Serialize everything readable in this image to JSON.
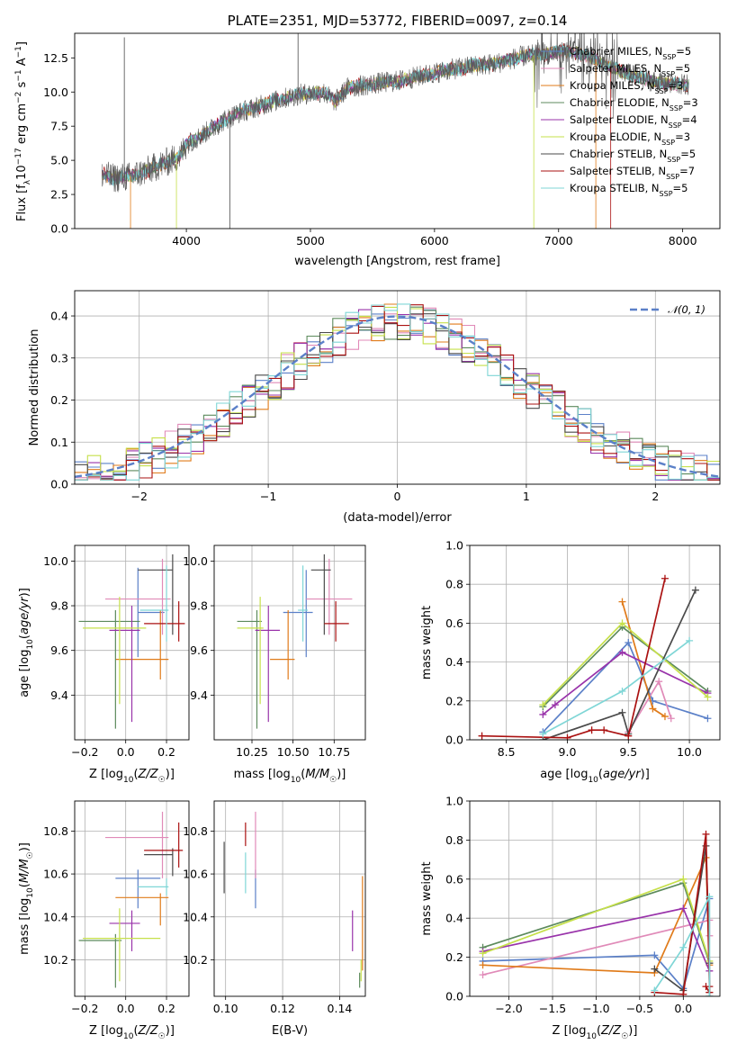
{
  "colors": {
    "Chabrier MILES": "#5b80c8",
    "Salpeter MILES": "#e08ab8",
    "Kroupa MILES": "#e07b1a",
    "Chabrier ELODIE": "#5c8a5c",
    "Salpeter ELODIE": "#9933aa",
    "Kroupa ELODIE": "#c6e04a",
    "Chabrier STELIB": "#4a4a4a",
    "Salpeter STELIB": "#aa1111",
    "Kroupa STELIB": "#7fd6d6"
  },
  "chart_data": [
    {
      "id": "spectrum",
      "type": "line",
      "title": "PLATE=2351, MJD=53772, FIBERID=0097, z=0.14",
      "xlabel": "wavelength [Angstrom, rest frame]",
      "ylabel": "Flux [fλ10⁻¹⁷ erg cm⁻² s⁻¹ A⁻¹]",
      "xlim": [
        3100,
        8300
      ],
      "ylim": [
        0,
        14.3
      ],
      "xticks": [
        4000,
        5000,
        6000,
        7000,
        8000
      ],
      "yticks": [
        "0.0",
        "2.5",
        "5.0",
        "7.5",
        "10.0",
        "12.5"
      ],
      "legend_position": "right",
      "series": [
        {
          "name": "Chabrier MILES",
          "nssp": "5"
        },
        {
          "name": "Salpeter MILES",
          "nssp": "5"
        },
        {
          "name": "Kroupa MILES",
          "nssp": "3"
        },
        {
          "name": "Chabrier ELODIE",
          "nssp": "3"
        },
        {
          "name": "Salpeter ELODIE",
          "nssp": "4"
        },
        {
          "name": "Kroupa ELODIE",
          "nssp": "3"
        },
        {
          "name": "Chabrier STELIB",
          "nssp": "5"
        },
        {
          "name": "Salpeter STELIB",
          "nssp": "7"
        },
        {
          "name": "Kroupa STELIB",
          "nssp": "5"
        }
      ],
      "continuum": {
        "x": [
          3320,
          3400,
          3550,
          3700,
          3850,
          3950,
          4000,
          4100,
          4200,
          4300,
          4400,
          4500,
          4700,
          4900,
          5100,
          5200,
          5300,
          5500,
          5700,
          5900,
          6100,
          6300,
          6500,
          6700,
          6900,
          7100,
          7300,
          7500,
          7700,
          7900,
          8050
        ],
        "y": [
          4.0,
          3.7,
          3.8,
          4.3,
          4.9,
          5.3,
          6.2,
          6.7,
          7.3,
          7.9,
          8.4,
          8.7,
          9.3,
          9.8,
          10.0,
          9.3,
          10.3,
          10.6,
          10.8,
          11.2,
          11.6,
          11.9,
          12.1,
          12.6,
          12.8,
          13.0,
          12.4,
          11.5,
          10.9,
          10.6,
          10.5
        ]
      }
    },
    {
      "id": "residuals",
      "type": "histogram",
      "xlabel": "(data-model)/error",
      "ylabel": "Normed distribution",
      "xlim": [
        -2.5,
        2.5
      ],
      "ylim": [
        0,
        0.46
      ],
      "xticks": [
        "−2",
        "−1",
        "0",
        "1",
        "2"
      ],
      "yticks": [
        "0.0",
        "0.1",
        "0.2",
        "0.3",
        "0.4"
      ],
      "grid": true,
      "legend_position": "top-right",
      "curve_label": "𝒩(0, 1)",
      "bin_width": 0.1
    },
    {
      "id": "age_vs_Z",
      "type": "errorbar",
      "xlabel": "Z [log10(Z/Z☉)]",
      "ylabel": "age [log10(age/yr)]",
      "xlim": [
        -0.25,
        0.31
      ],
      "ylim": [
        9.2,
        10.07
      ],
      "xticks": [
        "−0.2",
        "0.0",
        "0.2"
      ],
      "yticks": [
        "9.4",
        "9.6",
        "9.8",
        "10.0"
      ],
      "grid": true,
      "points": [
        {
          "s": "Chabrier MILES",
          "x": 0.06,
          "xe": [
            0.06,
            0.19
          ],
          "y": 9.77,
          "ye": [
            9.57,
            9.97
          ]
        },
        {
          "s": "Salpeter MILES",
          "x": 0.18,
          "xe": [
            -0.1,
            0.22
          ],
          "y": 9.83,
          "ye": [
            9.67,
            10.01
          ]
        },
        {
          "s": "Kroupa MILES",
          "x": 0.17,
          "xe": [
            -0.05,
            0.21
          ],
          "y": 9.56,
          "ye": [
            9.47,
            9.78
          ]
        },
        {
          "s": "Chabrier ELODIE",
          "x": -0.05,
          "xe": [
            -0.23,
            0.07
          ],
          "y": 9.73,
          "ye": [
            9.25,
            9.78
          ]
        },
        {
          "s": "Salpeter ELODIE",
          "x": 0.03,
          "xe": [
            -0.08,
            0.07
          ],
          "y": 9.69,
          "ye": [
            9.28,
            9.8
          ]
        },
        {
          "s": "Kroupa ELODIE",
          "x": -0.03,
          "xe": [
            -0.21,
            0.1
          ],
          "y": 9.7,
          "ye": [
            9.36,
            9.84
          ]
        },
        {
          "s": "Chabrier STELIB",
          "x": 0.23,
          "xe": [
            0.06,
            0.23
          ],
          "y": 9.96,
          "ye": [
            9.67,
            10.03
          ]
        },
        {
          "s": "Salpeter STELIB",
          "x": 0.26,
          "xe": [
            0.09,
            0.29
          ],
          "y": 9.72,
          "ye": [
            9.64,
            9.82
          ]
        },
        {
          "s": "Kroupa STELIB",
          "x": 0.2,
          "xe": [
            0.07,
            0.21
          ],
          "y": 9.78,
          "ye": [
            9.64,
            9.98
          ]
        }
      ]
    },
    {
      "id": "age_vs_mass",
      "type": "errorbar",
      "xlabel": "mass [log10(M/M☉)]",
      "ylabel": "",
      "xlim": [
        10.02,
        10.94
      ],
      "ylim": [
        9.2,
        10.07
      ],
      "xticks": [
        "10.25",
        "10.50",
        "10.75"
      ],
      "yticks": [
        "9.4",
        "9.6",
        "9.8",
        "10.0"
      ],
      "grid": true,
      "points": [
        {
          "s": "Chabrier MILES",
          "x": 10.58,
          "xe": [
            10.44,
            10.62
          ],
          "y": 9.77,
          "ye": [
            9.57,
            9.96
          ]
        },
        {
          "s": "Salpeter MILES",
          "x": 10.72,
          "xe": [
            10.58,
            10.86
          ],
          "y": 9.83,
          "ye": [
            9.67,
            10.01
          ]
        },
        {
          "s": "Kroupa MILES",
          "x": 10.47,
          "xe": [
            10.36,
            10.51
          ],
          "y": 9.56,
          "ye": [
            9.47,
            9.78
          ]
        },
        {
          "s": "Chabrier ELODIE",
          "x": 10.28,
          "xe": [
            10.16,
            10.31
          ],
          "y": 9.73,
          "ye": [
            9.25,
            9.78
          ]
        },
        {
          "s": "Salpeter ELODIE",
          "x": 10.35,
          "xe": [
            10.27,
            10.42
          ],
          "y": 9.69,
          "ye": [
            9.28,
            9.8
          ]
        },
        {
          "s": "Kroupa ELODIE",
          "x": 10.3,
          "xe": [
            10.16,
            10.32
          ],
          "y": 9.7,
          "ye": [
            9.36,
            9.84
          ]
        },
        {
          "s": "Chabrier STELIB",
          "x": 10.69,
          "xe": [
            10.61,
            10.73
          ],
          "y": 9.96,
          "ye": [
            9.67,
            10.03
          ]
        },
        {
          "s": "Salpeter STELIB",
          "x": 10.76,
          "xe": [
            10.69,
            10.84
          ],
          "y": 9.72,
          "ye": [
            9.64,
            9.82
          ]
        },
        {
          "s": "Kroupa STELIB",
          "x": 10.56,
          "xe": [
            10.53,
            10.59
          ],
          "y": 9.78,
          "ye": [
            9.64,
            9.98
          ]
        }
      ]
    },
    {
      "id": "weight_vs_age",
      "type": "line",
      "xlabel": "age  [log10(age/yr)]",
      "ylabel": "mass weight",
      "xlim": [
        8.2,
        10.25
      ],
      "ylim": [
        0,
        1.0
      ],
      "xticks": [
        "8.5",
        "9.0",
        "9.5",
        "10.0"
      ],
      "yticks": [
        "0.0",
        "0.2",
        "0.4",
        "0.6",
        "0.8",
        "1.0"
      ],
      "grid": true,
      "series": [
        {
          "s": "Chabrier MILES",
          "x": [
            8.8,
            9.5,
            9.7,
            10.15
          ],
          "y": [
            0.04,
            0.5,
            0.2,
            0.11
          ]
        },
        {
          "s": "Salpeter MILES",
          "x": [
            9.5,
            9.75,
            9.85
          ],
          "y": [
            0.04,
            0.3,
            0.11
          ]
        },
        {
          "s": "Kroupa MILES",
          "x": [
            9.45,
            9.7,
            9.8
          ],
          "y": [
            0.71,
            0.16,
            0.12
          ]
        },
        {
          "s": "Chabrier ELODIE",
          "x": [
            8.8,
            9.45,
            10.15
          ],
          "y": [
            0.17,
            0.58,
            0.25
          ]
        },
        {
          "s": "Salpeter ELODIE",
          "x": [
            8.8,
            8.9,
            9.45,
            10.15
          ],
          "y": [
            0.13,
            0.18,
            0.45,
            0.24
          ]
        },
        {
          "s": "Kroupa ELODIE",
          "x": [
            8.8,
            9.45,
            10.15
          ],
          "y": [
            0.18,
            0.6,
            0.22
          ]
        },
        {
          "s": "Chabrier STELIB",
          "x": [
            8.8,
            9.45,
            9.5,
            10.05
          ],
          "y": [
            0.0,
            0.14,
            0.03,
            0.77
          ]
        },
        {
          "s": "Salpeter STELIB",
          "x": [
            8.3,
            9.0,
            9.2,
            9.3,
            9.5,
            9.8
          ],
          "y": [
            0.02,
            0.01,
            0.05,
            0.05,
            0.02,
            0.83
          ]
        },
        {
          "s": "Kroupa STELIB",
          "x": [
            8.8,
            9.45,
            10.0
          ],
          "y": [
            0.03,
            0.25,
            0.51
          ]
        }
      ]
    },
    {
      "id": "mass_vs_Z",
      "type": "errorbar",
      "xlabel": "Z [log10(Z/Z☉)]",
      "ylabel": "mass [log10(M/M☉)]",
      "xlim": [
        -0.25,
        0.31
      ],
      "ylim": [
        10.03,
        10.94
      ],
      "xticks": [
        "−0.2",
        "0.0",
        "0.2"
      ],
      "yticks": [
        "10.2",
        "10.4",
        "10.6",
        "10.8"
      ],
      "grid": true,
      "points": [
        {
          "s": "Chabrier MILES",
          "x": 0.06,
          "xe": [
            -0.05,
            0.17
          ],
          "y": 10.58,
          "ye": [
            10.44,
            10.62
          ]
        },
        {
          "s": "Salpeter MILES",
          "x": 0.18,
          "xe": [
            -0.1,
            0.21
          ],
          "y": 10.77,
          "ye": [
            10.58,
            10.89
          ]
        },
        {
          "s": "Kroupa MILES",
          "x": 0.17,
          "xe": [
            -0.05,
            0.21
          ],
          "y": 10.49,
          "ye": [
            10.36,
            10.51
          ]
        },
        {
          "s": "Chabrier ELODIE",
          "x": -0.05,
          "xe": [
            -0.23,
            -0.02
          ],
          "y": 10.29,
          "ye": [
            10.07,
            10.32
          ]
        },
        {
          "s": "Salpeter ELODIE",
          "x": 0.03,
          "xe": [
            -0.08,
            0.07
          ],
          "y": 10.37,
          "ye": [
            10.24,
            10.43
          ]
        },
        {
          "s": "Kroupa ELODIE",
          "x": -0.03,
          "xe": [
            -0.21,
            0.17
          ],
          "y": 10.3,
          "ye": [
            10.1,
            10.44
          ]
        },
        {
          "s": "Chabrier STELIB",
          "x": 0.23,
          "xe": [
            0.09,
            0.23
          ],
          "y": 10.69,
          "ye": [
            10.59,
            10.72
          ]
        },
        {
          "s": "Salpeter STELIB",
          "x": 0.26,
          "xe": [
            0.09,
            0.28
          ],
          "y": 10.71,
          "ye": [
            10.63,
            10.84
          ]
        },
        {
          "s": "Kroupa STELIB",
          "x": 0.2,
          "xe": [
            0.06,
            0.21
          ],
          "y": 10.54,
          "ye": [
            10.5,
            10.58
          ]
        }
      ]
    },
    {
      "id": "mass_vs_EBV",
      "type": "errorbar",
      "xlabel": "E(B-V)",
      "ylabel": "",
      "xlim": [
        0.096,
        0.149
      ],
      "ylim": [
        10.03,
        10.94
      ],
      "xticks": [
        "0.10",
        "0.12",
        "0.14"
      ],
      "yticks": [
        "10.2",
        "10.4",
        "10.6",
        "10.8"
      ],
      "grid": true,
      "points": [
        {
          "s": "Chabrier MILES",
          "x": 0.1105,
          "y": 10.56,
          "ye": [
            10.44,
            10.62
          ]
        },
        {
          "s": "Salpeter MILES",
          "x": 0.1105,
          "y": 10.77,
          "ye": [
            10.58,
            10.89
          ]
        },
        {
          "s": "Kroupa MILES",
          "x": 0.148,
          "y": 10.4,
          "ye": [
            10.15,
            10.59
          ]
        },
        {
          "s": "Chabrier ELODIE",
          "x": 0.147,
          "y": 10.1,
          "ye": [
            10.07,
            10.14
          ]
        },
        {
          "s": "Salpeter ELODIE",
          "x": 0.1445,
          "y": 10.34,
          "ye": [
            10.24,
            10.43
          ]
        },
        {
          "s": "Kroupa ELODIE",
          "x": 0.1475,
          "y": 10.12,
          "ye": [
            10.1,
            10.2
          ]
        },
        {
          "s": "Chabrier STELIB",
          "x": 0.0995,
          "y": 10.63,
          "ye": [
            10.51,
            10.75
          ]
        },
        {
          "s": "Salpeter STELIB",
          "x": 0.107,
          "y": 10.79,
          "ye": [
            10.73,
            10.84
          ]
        },
        {
          "s": "Kroupa STELIB",
          "x": 0.107,
          "y": 10.62,
          "ye": [
            10.51,
            10.7
          ]
        }
      ]
    },
    {
      "id": "weight_vs_Z",
      "type": "line",
      "xlabel": "Z [log10(Z/Z☉)]",
      "ylabel": "mass weight",
      "xlim": [
        -2.45,
        0.42
      ],
      "ylim": [
        0,
        1.0
      ],
      "xticks": [
        "−2.0",
        "−1.5",
        "−1.0",
        "−0.5",
        "0.0"
      ],
      "yticks": [
        "0.0",
        "0.2",
        "0.4",
        "0.6",
        "0.8",
        "1.0"
      ],
      "grid": true,
      "series": [
        {
          "s": "Chabrier MILES",
          "x": [
            -2.3,
            -0.33,
            0.0,
            0.3
          ],
          "y": [
            0.18,
            0.21,
            0.04,
            0.5
          ]
        },
        {
          "s": "Salpeter MILES",
          "x": [
            -2.3,
            0.3,
            0.3
          ],
          "y": [
            0.11,
            0.39,
            0.31
          ]
        },
        {
          "s": "Kroupa MILES",
          "x": [
            -2.3,
            -0.33,
            0.26,
            0.3
          ],
          "y": [
            0.16,
            0.12,
            0.71,
            0.16
          ]
        },
        {
          "s": "Chabrier ELODIE",
          "x": [
            -2.3,
            0.0,
            0.3
          ],
          "y": [
            0.25,
            0.58,
            0.17
          ]
        },
        {
          "s": "Salpeter ELODIE",
          "x": [
            -2.3,
            0.0,
            0.3
          ],
          "y": [
            0.23,
            0.45,
            0.13
          ]
        },
        {
          "s": "Kroupa ELODIE",
          "x": [
            -2.3,
            0.0,
            0.3
          ],
          "y": [
            0.22,
            0.6,
            0.18
          ]
        },
        {
          "s": "Chabrier STELIB",
          "x": [
            -0.33,
            0.0,
            0.26,
            0.3,
            0.3
          ],
          "y": [
            0.14,
            0.03,
            0.77,
            0.17,
            0.0
          ]
        },
        {
          "s": "Salpeter STELIB",
          "x": [
            -0.33,
            0.0,
            0.26,
            0.3,
            0.3,
            0.26,
            0.3
          ],
          "y": [
            0.02,
            0.01,
            0.83,
            0.05,
            0.02,
            0.05,
            0.02
          ]
        },
        {
          "s": "Kroupa STELIB",
          "x": [
            -0.33,
            0.0,
            0.3,
            0.3
          ],
          "y": [
            0.03,
            0.25,
            0.51,
            0.0
          ]
        }
      ]
    }
  ]
}
